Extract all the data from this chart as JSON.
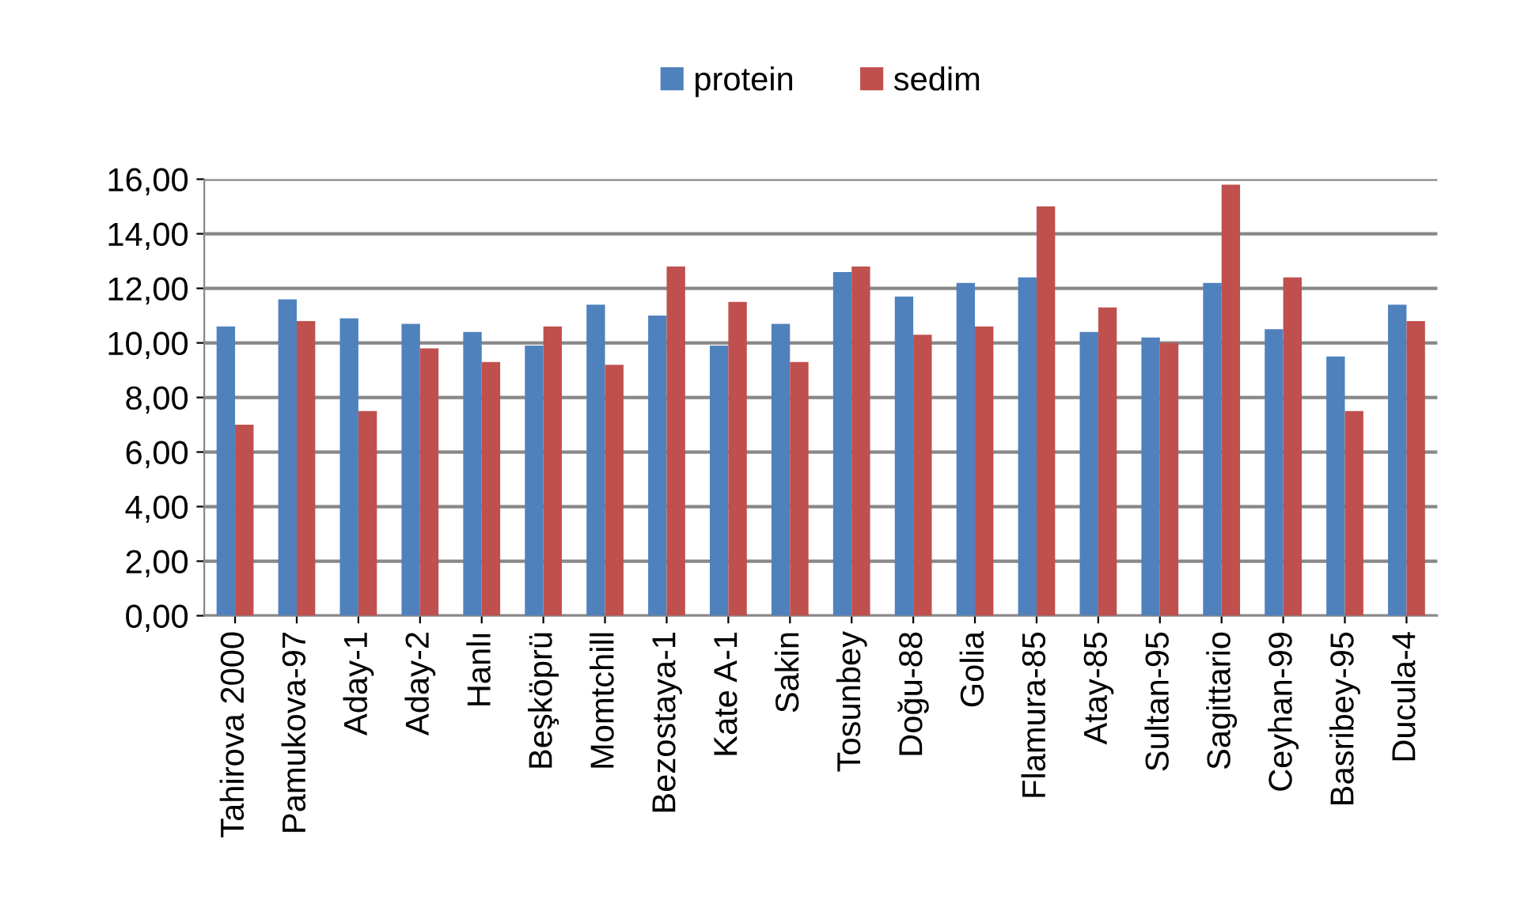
{
  "chart_data": {
    "type": "bar",
    "categories": [
      "Tahirova 2000",
      "Pamukova-97",
      "Aday-1",
      "Aday-2",
      "Hanlı",
      "Beşköprü",
      "Momtchill",
      "Bezostaya-1",
      "Kate A-1",
      "Sakin",
      "Tosunbey",
      "Doğu-88",
      "Golia",
      "Flamura-85",
      "Atay-85",
      "Sultan-95",
      "Sagittario",
      "Ceyhan-99",
      "Basribey-95",
      "Ducula-4"
    ],
    "series": [
      {
        "name": "protein",
        "color": "#4f81bd",
        "values": [
          10.6,
          11.6,
          10.9,
          10.7,
          10.4,
          9.9,
          11.4,
          11.0,
          9.9,
          10.7,
          12.6,
          11.7,
          12.2,
          12.4,
          10.4,
          10.2,
          12.2,
          10.5,
          9.5,
          11.4
        ]
      },
      {
        "name": "sedim",
        "color": "#c0504d",
        "values": [
          7.0,
          10.8,
          7.5,
          9.8,
          9.3,
          10.6,
          9.2,
          12.8,
          11.5,
          9.3,
          12.8,
          10.3,
          10.6,
          15.0,
          11.3,
          10.0,
          15.8,
          12.4,
          7.5,
          10.8
        ]
      }
    ],
    "ylim": [
      0,
      16
    ],
    "yticks": [
      {
        "value": 0,
        "label": "0,00"
      },
      {
        "value": 2,
        "label": "2,00"
      },
      {
        "value": 4,
        "label": "4,00"
      },
      {
        "value": 6,
        "label": "6,00"
      },
      {
        "value": 8,
        "label": "8,00"
      },
      {
        "value": 10,
        "label": "10,00"
      },
      {
        "value": 12,
        "label": "12,00"
      },
      {
        "value": 14,
        "label": "14,00"
      },
      {
        "value": 16,
        "label": "16,00"
      }
    ],
    "grid": "y",
    "legend": "top"
  }
}
